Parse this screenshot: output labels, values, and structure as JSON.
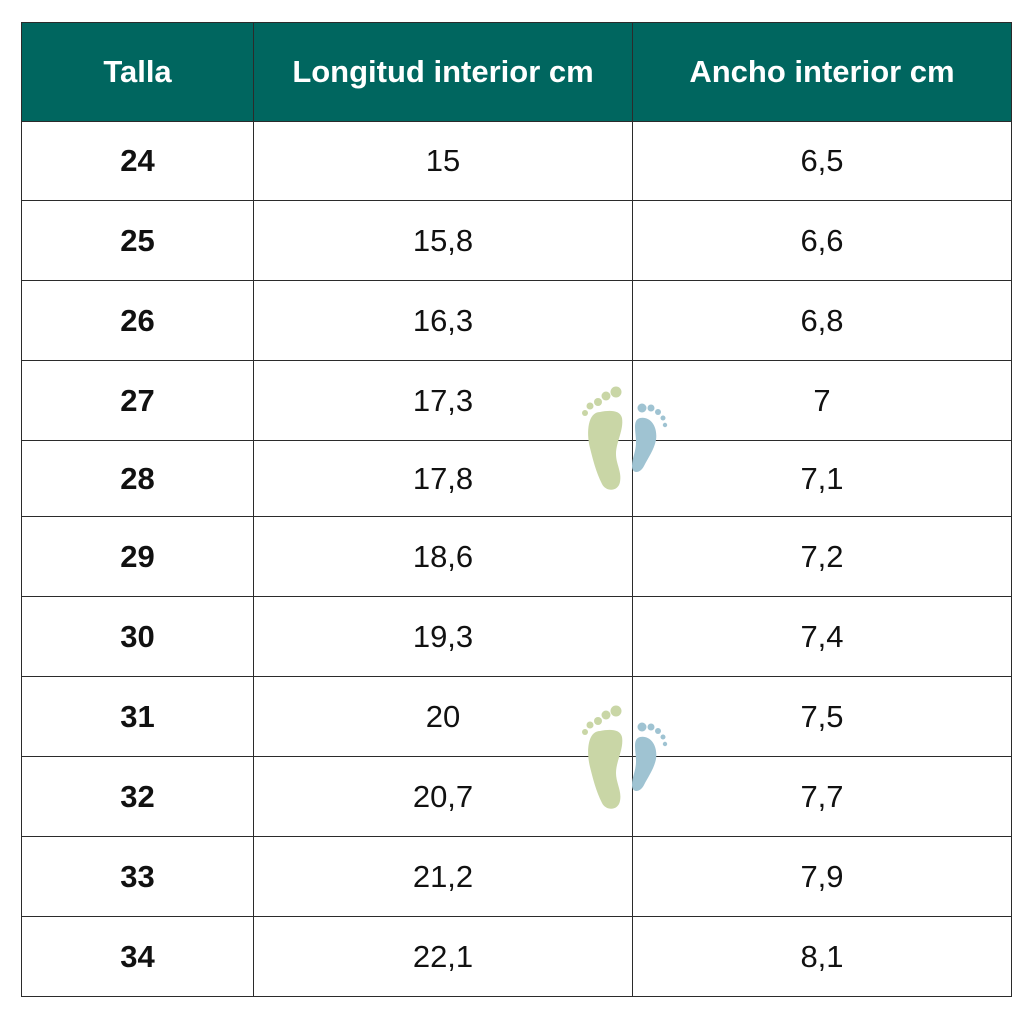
{
  "table": {
    "headers": [
      "Talla",
      "Longitud interior cm",
      "Ancho interior cm"
    ],
    "rows": [
      [
        "24",
        "15",
        "6,5"
      ],
      [
        "25",
        "15,8",
        "6,6"
      ],
      [
        "26",
        "16,3",
        "6,8"
      ],
      [
        "27",
        "17,3",
        "7"
      ],
      [
        "28",
        "17,8",
        "7,1"
      ],
      [
        "29",
        "18,6",
        "7,2"
      ],
      [
        "30",
        "19,3",
        "7,4"
      ],
      [
        "31",
        "20",
        "7,5"
      ],
      [
        "32",
        "20,7",
        "7,7"
      ],
      [
        "33",
        "21,2",
        "7,9"
      ],
      [
        "34",
        "22,1",
        "8,1"
      ]
    ]
  },
  "colors": {
    "header_bg": "#00665f",
    "header_text": "#ffffff",
    "border": "#2b2b2b",
    "foot_left": "#c9d6a6",
    "foot_right": "#9fc3d2"
  },
  "watermark": {
    "icon": "footprints-icon",
    "count": 2
  }
}
